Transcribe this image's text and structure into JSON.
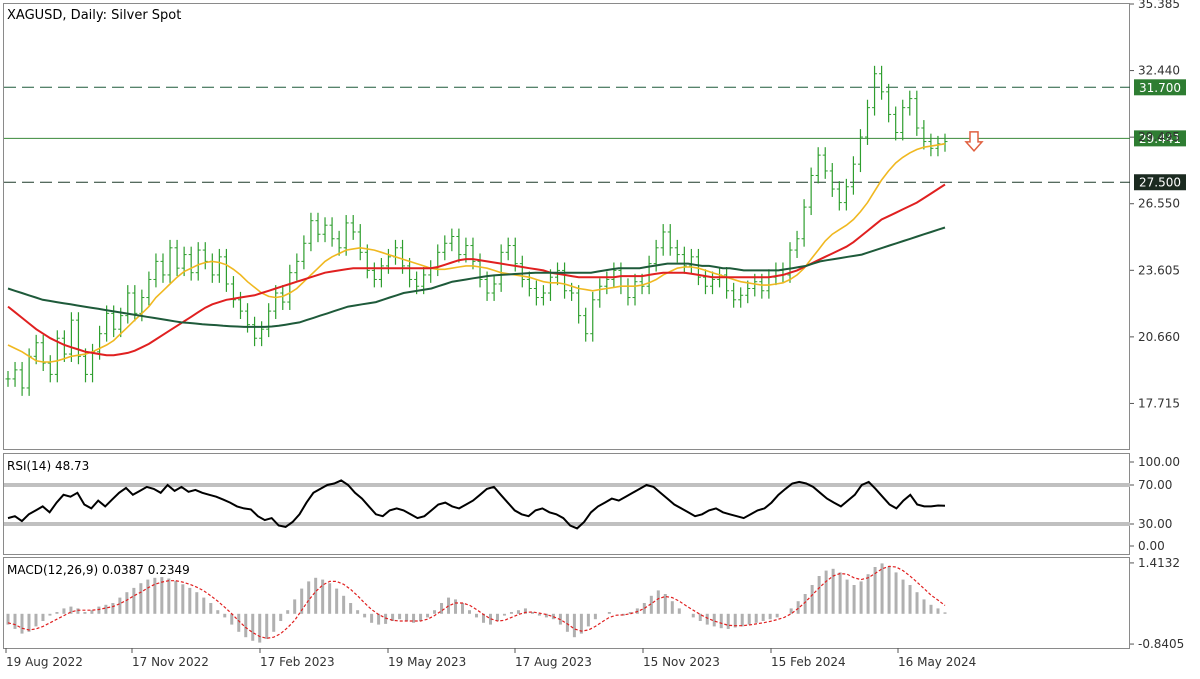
{
  "chart_data": {
    "type": "line",
    "symbol_label": "XAGUSD, Daily:  Silver Spot",
    "price_axis": {
      "ylim": [
        15.7,
        35.385
      ],
      "ticks": [
        "35.385",
        "32.440",
        "29.495",
        "26.550",
        "23.605",
        "20.660",
        "17.715"
      ],
      "tick_values": [
        35.385,
        32.44,
        29.495,
        26.55,
        23.605,
        20.66,
        17.715
      ]
    },
    "x_tick_labels": [
      "19 Aug 2022",
      "17 Nov 2022",
      "17 Feb 2023",
      "19 May 2023",
      "17 Aug 2023",
      "15 Nov 2023",
      "15 Feb 2024",
      "16 May 2024"
    ],
    "horizontal_levels": [
      {
        "value": 31.7,
        "label": "31.700",
        "style": "dashed",
        "color": "#1f5a3a"
      },
      {
        "value": 29.441,
        "label": "29.441",
        "style": "solid",
        "color": "#3a8a3a"
      },
      {
        "value": 27.5,
        "label": "27.500",
        "style": "dashed",
        "color": "#1f3a2a"
      }
    ],
    "annotation": {
      "type": "down-arrow",
      "color": "#e06040"
    },
    "series": [
      {
        "name": "",
        "kind": "price-bars",
        "color": "#2e9e2e",
        "values": [
          18.8,
          19.2,
          18.4,
          19.8,
          20.4,
          19.5,
          19.0,
          20.6,
          19.9,
          21.4,
          19.8,
          19.0,
          20.0,
          20.8,
          21.7,
          21.0,
          21.6,
          22.6,
          21.7,
          22.4,
          23.2,
          24.0,
          23.4,
          24.6,
          23.7,
          24.3,
          23.5,
          24.5,
          24.0,
          23.4,
          24.2,
          23.0,
          22.3,
          21.8,
          21.2,
          20.6,
          21.0,
          21.8,
          22.6,
          22.2,
          23.5,
          24.0,
          24.8,
          25.8,
          25.2,
          25.6,
          25.0,
          24.6,
          25.7,
          25.3,
          24.4,
          23.6,
          23.2,
          23.8,
          24.2,
          24.6,
          23.8,
          23.2,
          22.9,
          23.4,
          23.7,
          24.4,
          24.8,
          25.1,
          24.3,
          24.7,
          24.0,
          23.2,
          22.6,
          23.0,
          24.4,
          24.7,
          23.9,
          23.2,
          22.8,
          22.4,
          22.6,
          23.3,
          23.6,
          22.7,
          22.6,
          21.6,
          20.8,
          22.3,
          22.9,
          23.2,
          23.6,
          22.9,
          22.4,
          23.1,
          22.9,
          23.9,
          24.6,
          25.3,
          24.6,
          24.3,
          23.8,
          24.2,
          23.3,
          22.9,
          23.2,
          23.4,
          22.7,
          22.3,
          22.5,
          22.8,
          23.1,
          22.7,
          23.3,
          23.6,
          23.4,
          24.5,
          25.0,
          26.4,
          27.8,
          28.7,
          28.0,
          27.2,
          26.6,
          27.3,
          28.3,
          29.5,
          30.8,
          32.3,
          31.5,
          30.5,
          29.7,
          30.8,
          31.2,
          29.9,
          29.3,
          29.0,
          29.2,
          29.3
        ]
      },
      {
        "name": "",
        "kind": "moving-average",
        "color": "#f0b820",
        "values": [
          20.3,
          20.15,
          20.0,
          19.8,
          19.6,
          19.55,
          19.55,
          19.6,
          19.7,
          19.8,
          19.85,
          19.9,
          20.0,
          20.15,
          20.3,
          20.5,
          20.8,
          21.1,
          21.4,
          21.7,
          22.0,
          22.4,
          22.7,
          23.0,
          23.3,
          23.55,
          23.7,
          23.85,
          23.95,
          24.0,
          23.95,
          23.85,
          23.65,
          23.4,
          23.1,
          22.85,
          22.6,
          22.45,
          22.4,
          22.45,
          22.6,
          22.8,
          23.1,
          23.4,
          23.7,
          24.0,
          24.2,
          24.35,
          24.5,
          24.55,
          24.6,
          24.55,
          24.5,
          24.4,
          24.3,
          24.2,
          24.1,
          24.0,
          23.9,
          23.8,
          23.7,
          23.65,
          23.65,
          23.7,
          23.75,
          23.8,
          23.8,
          23.75,
          23.7,
          23.6,
          23.5,
          23.45,
          23.4,
          23.35,
          23.3,
          23.2,
          23.1,
          23.05,
          23.05,
          23.0,
          22.9,
          22.8,
          22.75,
          22.7,
          22.75,
          22.8,
          22.85,
          22.9,
          22.9,
          22.9,
          22.95,
          23.05,
          23.2,
          23.4,
          23.55,
          23.7,
          23.75,
          23.75,
          23.7,
          23.6,
          23.5,
          23.4,
          23.3,
          23.2,
          23.1,
          23.05,
          23.0,
          22.95,
          22.95,
          23.0,
          23.05,
          23.2,
          23.4,
          23.7,
          24.1,
          24.5,
          24.9,
          25.2,
          25.4,
          25.6,
          25.85,
          26.2,
          26.6,
          27.1,
          27.6,
          28.0,
          28.35,
          28.6,
          28.8,
          28.95,
          29.05,
          29.1,
          29.15,
          29.2
        ]
      },
      {
        "name": "",
        "kind": "moving-average",
        "color": "#e02020",
        "values": [
          22.0,
          21.75,
          21.5,
          21.25,
          21.0,
          20.8,
          20.6,
          20.45,
          20.3,
          20.2,
          20.1,
          20.0,
          19.95,
          19.9,
          19.85,
          19.85,
          19.9,
          19.95,
          20.05,
          20.2,
          20.35,
          20.55,
          20.75,
          20.95,
          21.15,
          21.35,
          21.55,
          21.75,
          21.95,
          22.1,
          22.2,
          22.3,
          22.35,
          22.4,
          22.45,
          22.5,
          22.6,
          22.7,
          22.8,
          22.9,
          23.0,
          23.1,
          23.2,
          23.3,
          23.4,
          23.5,
          23.55,
          23.6,
          23.65,
          23.7,
          23.7,
          23.7,
          23.7,
          23.7,
          23.7,
          23.7,
          23.7,
          23.7,
          23.7,
          23.7,
          23.7,
          23.75,
          23.85,
          23.95,
          24.05,
          24.1,
          24.1,
          24.05,
          24.0,
          23.95,
          23.9,
          23.85,
          23.8,
          23.75,
          23.7,
          23.65,
          23.6,
          23.5,
          23.45,
          23.4,
          23.35,
          23.3,
          23.3,
          23.3,
          23.3,
          23.3,
          23.3,
          23.35,
          23.35,
          23.35,
          23.35,
          23.4,
          23.45,
          23.5,
          23.5,
          23.5,
          23.5,
          23.45,
          23.4,
          23.35,
          23.3,
          23.3,
          23.3,
          23.3,
          23.3,
          23.3,
          23.3,
          23.3,
          23.3,
          23.35,
          23.4,
          23.5,
          23.6,
          23.75,
          23.9,
          24.05,
          24.2,
          24.35,
          24.5,
          24.65,
          24.85,
          25.1,
          25.35,
          25.6,
          25.85,
          26.0,
          26.15,
          26.3,
          26.45,
          26.6,
          26.8,
          27.0,
          27.2,
          27.4
        ]
      },
      {
        "name": "",
        "kind": "moving-average",
        "color": "#1e5a3a",
        "values": [
          22.8,
          22.7,
          22.6,
          22.5,
          22.4,
          22.3,
          22.25,
          22.2,
          22.15,
          22.1,
          22.05,
          22.0,
          21.95,
          21.9,
          21.85,
          21.8,
          21.75,
          21.7,
          21.65,
          21.6,
          21.55,
          21.5,
          21.45,
          21.4,
          21.35,
          21.3,
          21.28,
          21.25,
          21.22,
          21.2,
          21.18,
          21.15,
          21.13,
          21.12,
          21.1,
          21.1,
          21.1,
          21.1,
          21.12,
          21.15,
          21.2,
          21.25,
          21.3,
          21.4,
          21.5,
          21.6,
          21.7,
          21.8,
          21.9,
          22.0,
          22.05,
          22.1,
          22.15,
          22.2,
          22.3,
          22.4,
          22.5,
          22.6,
          22.65,
          22.7,
          22.75,
          22.8,
          22.9,
          23.0,
          23.1,
          23.15,
          23.2,
          23.25,
          23.3,
          23.35,
          23.38,
          23.4,
          23.42,
          23.44,
          23.46,
          23.48,
          23.5,
          23.5,
          23.5,
          23.5,
          23.5,
          23.5,
          23.5,
          23.5,
          23.5,
          23.55,
          23.6,
          23.65,
          23.7,
          23.7,
          23.7,
          23.7,
          23.75,
          23.8,
          23.85,
          23.9,
          23.9,
          23.9,
          23.9,
          23.85,
          23.8,
          23.8,
          23.75,
          23.7,
          23.7,
          23.65,
          23.6,
          23.6,
          23.6,
          23.6,
          23.6,
          23.6,
          23.65,
          23.7,
          23.75,
          23.8,
          23.9,
          24.0,
          24.05,
          24.1,
          24.15,
          24.2,
          24.25,
          24.3,
          24.4,
          24.5,
          24.6,
          24.7,
          24.8,
          24.9,
          25.0,
          25.1,
          25.2,
          25.3,
          25.4,
          25.5
        ]
      }
    ],
    "rsi": {
      "label": "RSI(14) 48.73",
      "ticks": [
        "100.00",
        "70.00",
        "30.00",
        "0.00"
      ],
      "tick_values": [
        100,
        70,
        30,
        0
      ],
      "levels": [
        70,
        30
      ],
      "color": "#000000",
      "values": [
        36,
        38,
        33,
        40,
        44,
        48,
        42,
        52,
        60,
        58,
        62,
        50,
        46,
        54,
        48,
        55,
        62,
        67,
        60,
        64,
        68,
        66,
        62,
        70,
        64,
        68,
        63,
        65,
        62,
        60,
        58,
        55,
        52,
        48,
        46,
        45,
        38,
        34,
        36,
        28,
        26,
        32,
        40,
        52,
        62,
        66,
        70,
        72,
        76,
        70,
        62,
        56,
        48,
        40,
        38,
        44,
        46,
        44,
        40,
        36,
        38,
        44,
        50,
        52,
        48,
        46,
        50,
        54,
        60,
        66,
        68,
        60,
        52,
        44,
        40,
        38,
        44,
        46,
        42,
        40,
        36,
        28,
        24,
        32,
        42,
        48,
        52,
        56,
        54,
        58,
        62,
        66,
        70,
        68,
        62,
        56,
        50,
        46,
        42,
        38,
        40,
        44,
        46,
        42,
        40,
        38,
        36,
        40,
        44,
        46,
        52,
        60,
        66,
        72,
        74,
        72,
        68,
        62,
        56,
        52,
        48,
        54,
        60,
        70,
        74,
        66,
        58,
        50,
        46,
        54,
        60,
        50,
        48,
        48,
        49,
        48.73
      ]
    },
    "macd": {
      "label": "MACD(12,26,9) 0.0387 0.2349",
      "ticks": [
        "1.4132",
        "-0.8405"
      ],
      "tick_values": [
        1.4132,
        -0.8405
      ],
      "hist_color": "#b0b0b0",
      "signal_color": "#e02020",
      "values": [
        -0.3,
        -0.42,
        -0.55,
        -0.5,
        -0.35,
        -0.2,
        -0.05,
        0.05,
        0.15,
        0.2,
        0.15,
        0.05,
        0.1,
        0.2,
        0.25,
        0.3,
        0.45,
        0.6,
        0.72,
        0.85,
        0.95,
        1.0,
        1.02,
        0.98,
        0.92,
        0.82,
        0.72,
        0.6,
        0.45,
        0.3,
        0.1,
        -0.1,
        -0.3,
        -0.5,
        -0.65,
        -0.75,
        -0.8,
        -0.7,
        -0.5,
        -0.2,
        0.1,
        0.4,
        0.7,
        0.9,
        1.0,
        0.95,
        0.85,
        0.7,
        0.5,
        0.3,
        0.1,
        -0.1,
        -0.25,
        -0.3,
        -0.28,
        -0.2,
        -0.15,
        -0.2,
        -0.25,
        -0.2,
        -0.1,
        0.1,
        0.3,
        0.45,
        0.4,
        0.3,
        0.1,
        -0.1,
        -0.25,
        -0.3,
        -0.2,
        -0.05,
        0.05,
        0.1,
        0.15,
        0.05,
        -0.05,
        -0.1,
        -0.15,
        -0.3,
        -0.5,
        -0.65,
        -0.55,
        -0.35,
        -0.15,
        0.0,
        0.05,
        0.0,
        -0.05,
        0.05,
        0.15,
        0.3,
        0.5,
        0.65,
        0.55,
        0.35,
        0.15,
        0.0,
        -0.1,
        -0.2,
        -0.3,
        -0.35,
        -0.4,
        -0.42,
        -0.38,
        -0.35,
        -0.3,
        -0.25,
        -0.2,
        -0.15,
        -0.1,
        0.0,
        0.15,
        0.35,
        0.55,
        0.8,
        1.05,
        1.2,
        1.25,
        1.15,
        0.95,
        0.8,
        0.9,
        1.1,
        1.3,
        1.4,
        1.3,
        1.15,
        0.95,
        0.8,
        0.6,
        0.4,
        0.25,
        0.15,
        0.04
      ],
      "signal": [
        -0.25,
        -0.3,
        -0.4,
        -0.45,
        -0.42,
        -0.35,
        -0.25,
        -0.15,
        -0.05,
        0.05,
        0.1,
        0.1,
        0.1,
        0.12,
        0.16,
        0.2,
        0.28,
        0.38,
        0.5,
        0.6,
        0.72,
        0.82,
        0.88,
        0.92,
        0.92,
        0.88,
        0.82,
        0.74,
        0.64,
        0.5,
        0.35,
        0.18,
        0.0,
        -0.2,
        -0.38,
        -0.52,
        -0.63,
        -0.68,
        -0.65,
        -0.55,
        -0.38,
        -0.18,
        0.1,
        0.38,
        0.62,
        0.8,
        0.9,
        0.9,
        0.82,
        0.68,
        0.5,
        0.3,
        0.12,
        -0.02,
        -0.12,
        -0.18,
        -0.2,
        -0.2,
        -0.2,
        -0.2,
        -0.15,
        -0.05,
        0.08,
        0.22,
        0.3,
        0.3,
        0.24,
        0.12,
        -0.02,
        -0.14,
        -0.2,
        -0.18,
        -0.1,
        -0.02,
        0.04,
        0.05,
        0.02,
        -0.02,
        -0.08,
        -0.16,
        -0.28,
        -0.42,
        -0.48,
        -0.45,
        -0.35,
        -0.22,
        -0.1,
        -0.04,
        -0.03,
        0.0,
        0.06,
        0.15,
        0.28,
        0.42,
        0.48,
        0.45,
        0.35,
        0.22,
        0.1,
        -0.02,
        -0.12,
        -0.2,
        -0.26,
        -0.32,
        -0.33,
        -0.33,
        -0.31,
        -0.28,
        -0.25,
        -0.21,
        -0.16,
        -0.1,
        0.0,
        0.15,
        0.32,
        0.52,
        0.72,
        0.9,
        1.05,
        1.12,
        1.1,
        1.0,
        0.95,
        1.0,
        1.12,
        1.25,
        1.32,
        1.3,
        1.2,
        1.05,
        0.88,
        0.7,
        0.52,
        0.38,
        0.23
      ]
    }
  }
}
